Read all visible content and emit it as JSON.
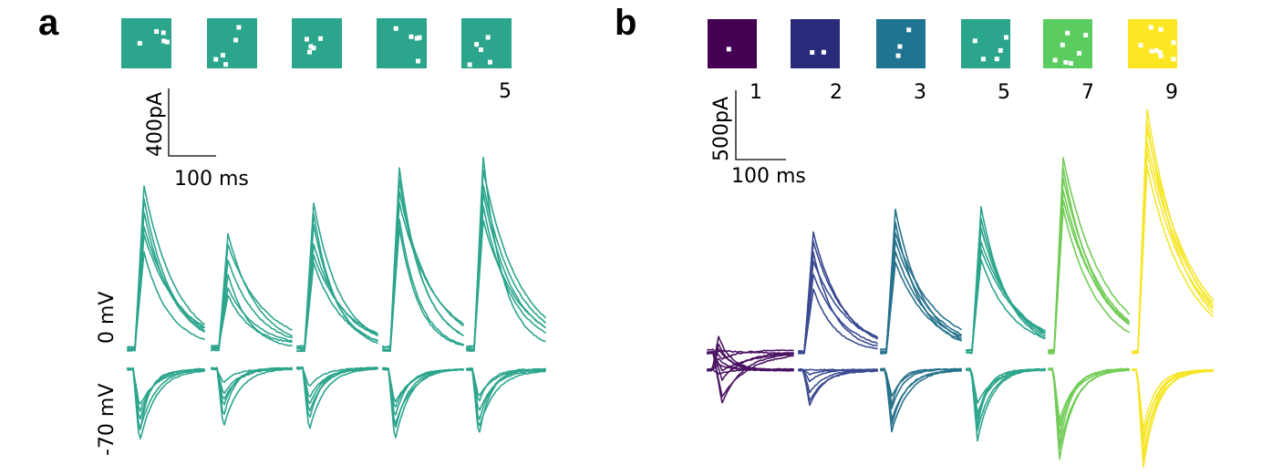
{
  "panels": {
    "a": {
      "letter": "a",
      "color": "#2ca58d",
      "pattern_count_label": "5",
      "scale_current": "400pA",
      "scale_time": "100 ms",
      "trace_label_depolarized": "0 mV",
      "trace_label_hyperpolarized": "-70 mV",
      "patterns": [
        {
          "name": "pattern-1",
          "dots": 5
        },
        {
          "name": "pattern-2",
          "dots": 5
        },
        {
          "name": "pattern-3",
          "dots": 5
        },
        {
          "name": "pattern-4",
          "dots": 5
        },
        {
          "name": "pattern-5",
          "dots": 5
        }
      ]
    },
    "b": {
      "letter": "b",
      "scale_current": "500pA",
      "scale_time": "100 ms",
      "patterns": [
        {
          "label": "1",
          "color": "#440154",
          "dots": 1
        },
        {
          "label": "2",
          "color": "#2a2a7a",
          "dots": 2
        },
        {
          "label": "3",
          "color": "#1f7491",
          "dots": 3
        },
        {
          "label": "5",
          "color": "#2ca58d",
          "dots": 5
        },
        {
          "label": "7",
          "color": "#5bcd60",
          "dots": 7
        },
        {
          "label": "9",
          "color": "#fde725",
          "dots": 9
        }
      ],
      "trace_colors": [
        "#4b1363",
        "#3b4a91",
        "#27728c",
        "#2ca58d",
        "#72cc57",
        "#f6e62a"
      ]
    }
  }
}
